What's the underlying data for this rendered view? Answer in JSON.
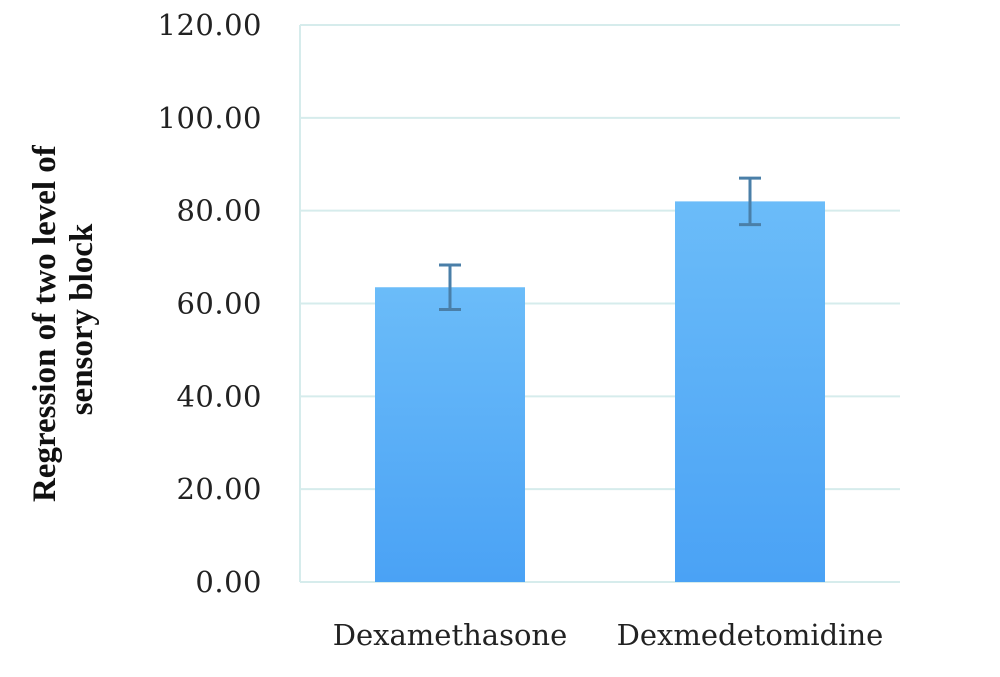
{
  "chart_data": {
    "type": "bar",
    "categories": [
      "Dexamethasone",
      "Dexmedetomidine"
    ],
    "values": [
      63.5,
      82.0
    ],
    "error": [
      4.8,
      5.0
    ],
    "ylabel": [
      "Regression of two level of",
      "sensory block"
    ],
    "xlabel": "",
    "ylim": [
      0,
      120
    ],
    "yticks": [
      "0.00",
      "20.00",
      "40.00",
      "60.00",
      "80.00",
      "100.00",
      "120.00"
    ],
    "grid": true,
    "legend": "none",
    "colors": {
      "bar_top": "#6bbcf9",
      "bar_bottom": "#4aa2f5",
      "error_bar": "#4a7fa8",
      "grid": "#d6ecec"
    }
  }
}
